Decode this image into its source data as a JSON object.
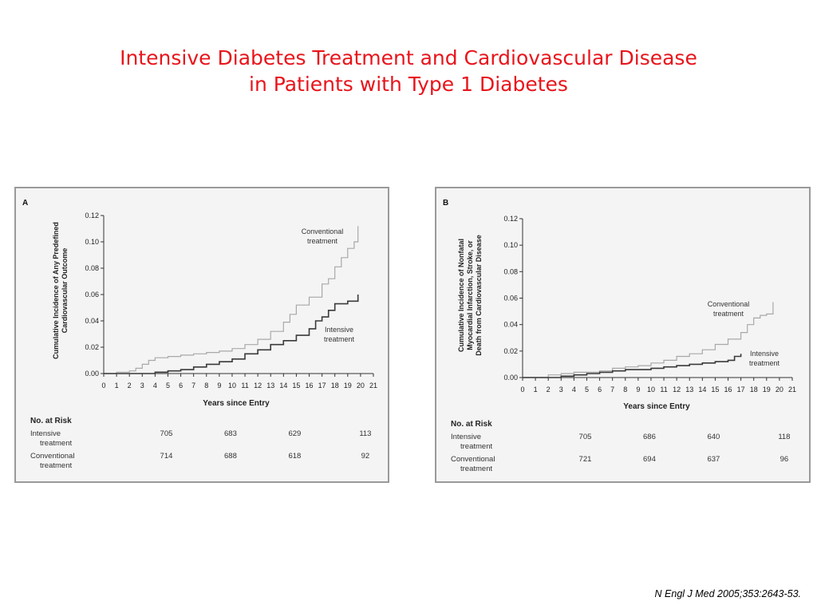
{
  "slide": {
    "title_line1": "Intensive Diabetes Treatment and Cardiovascular Disease",
    "title_line2": "in Patients with Type 1 Diabetes",
    "citation": "N Engl J Med 2005;353:2643-53."
  },
  "chart_data": [
    {
      "type": "line",
      "panel": "A",
      "ylabel_line1": "Cumulative Incidence of Any Predefined",
      "ylabel_line2": "Cardiovascular Outcome",
      "xlabel": "Years since Entry",
      "xlim": [
        0,
        21
      ],
      "ylim": [
        0,
        0.12
      ],
      "xticks": [
        0,
        1,
        2,
        3,
        4,
        5,
        6,
        7,
        8,
        9,
        10,
        11,
        12,
        13,
        14,
        15,
        16,
        17,
        18,
        19,
        20,
        21
      ],
      "yticks": [
        "0.00",
        "0.02",
        "0.04",
        "0.06",
        "0.08",
        "0.10",
        "0.12"
      ],
      "series": [
        {
          "name_line1": "Conventional",
          "name_line2": "treatment",
          "color": "#a8a8a8",
          "points": [
            [
              0,
              0
            ],
            [
              1,
              0.001
            ],
            [
              2,
              0.002
            ],
            [
              2.5,
              0.004
            ],
            [
              3,
              0.007
            ],
            [
              3.5,
              0.01
            ],
            [
              4,
              0.012
            ],
            [
              5,
              0.013
            ],
            [
              6,
              0.014
            ],
            [
              7,
              0.015
            ],
            [
              8,
              0.016
            ],
            [
              9,
              0.017
            ],
            [
              10,
              0.019
            ],
            [
              11,
              0.022
            ],
            [
              12,
              0.026
            ],
            [
              13,
              0.032
            ],
            [
              14,
              0.039
            ],
            [
              14.5,
              0.045
            ],
            [
              15,
              0.052
            ],
            [
              16,
              0.058
            ],
            [
              17,
              0.068
            ],
            [
              17.5,
              0.072
            ],
            [
              18,
              0.081
            ],
            [
              18.5,
              0.088
            ],
            [
              19,
              0.095
            ],
            [
              19.5,
              0.1
            ],
            [
              19.8,
              0.112
            ]
          ]
        },
        {
          "name_line1": "Intensive",
          "name_line2": "treatment",
          "color": "#3a3a3a",
          "points": [
            [
              0,
              0
            ],
            [
              3,
              0
            ],
            [
              4,
              0.001
            ],
            [
              5,
              0.002
            ],
            [
              6,
              0.003
            ],
            [
              7,
              0.005
            ],
            [
              8,
              0.007
            ],
            [
              9,
              0.009
            ],
            [
              10,
              0.011
            ],
            [
              11,
              0.015
            ],
            [
              12,
              0.018
            ],
            [
              13,
              0.022
            ],
            [
              14,
              0.025
            ],
            [
              15,
              0.029
            ],
            [
              16,
              0.034
            ],
            [
              16.5,
              0.04
            ],
            [
              17,
              0.043
            ],
            [
              17.5,
              0.048
            ],
            [
              18,
              0.053
            ],
            [
              19,
              0.055
            ],
            [
              19.8,
              0.06
            ]
          ]
        }
      ],
      "at_risk": {
        "header": "No. at Risk",
        "rows": [
          {
            "label_line1": "Intensive",
            "label_line2": "treatment",
            "values": [
              "705",
              "683",
              "629",
              "113"
            ]
          },
          {
            "label_line1": "Conventional",
            "label_line2": "treatment",
            "values": [
              "714",
              "688",
              "618",
              "92"
            ]
          }
        ],
        "years": [
          5,
          10,
          15,
          20
        ]
      }
    },
    {
      "type": "line",
      "panel": "B",
      "ylabel_line1": "Cumulative Incidence of Nonfatal",
      "ylabel_line2": "Myocardial Infarction, Stroke, or",
      "ylabel_line3": "Death from Cardiovascular Disease",
      "xlabel": "Years since Entry",
      "xlim": [
        0,
        21
      ],
      "ylim": [
        0,
        0.12
      ],
      "xticks": [
        0,
        1,
        2,
        3,
        4,
        5,
        6,
        7,
        8,
        9,
        10,
        11,
        12,
        13,
        14,
        15,
        16,
        17,
        18,
        19,
        20,
        21
      ],
      "yticks": [
        "0.00",
        "0.02",
        "0.04",
        "0.06",
        "0.08",
        "0.10",
        "0.12"
      ],
      "series": [
        {
          "name_line1": "Conventional",
          "name_line2": "treatment",
          "color": "#a8a8a8",
          "points": [
            [
              0,
              0
            ],
            [
              2,
              0.002
            ],
            [
              3,
              0.003
            ],
            [
              4,
              0.004
            ],
            [
              5,
              0.004
            ],
            [
              6,
              0.005
            ],
            [
              7,
              0.007
            ],
            [
              8,
              0.008
            ],
            [
              9,
              0.009
            ],
            [
              10,
              0.011
            ],
            [
              11,
              0.013
            ],
            [
              12,
              0.016
            ],
            [
              13,
              0.018
            ],
            [
              14,
              0.021
            ],
            [
              15,
              0.025
            ],
            [
              16,
              0.029
            ],
            [
              17,
              0.034
            ],
            [
              17.5,
              0.04
            ],
            [
              18,
              0.045
            ],
            [
              18.5,
              0.047
            ],
            [
              19,
              0.048
            ],
            [
              19.5,
              0.057
            ]
          ]
        },
        {
          "name_line1": "Intensive",
          "name_line2": "treatment",
          "color": "#3a3a3a",
          "points": [
            [
              0,
              0
            ],
            [
              3,
              0.001
            ],
            [
              4,
              0.002
            ],
            [
              5,
              0.003
            ],
            [
              6,
              0.004
            ],
            [
              7,
              0.005
            ],
            [
              8,
              0.006
            ],
            [
              9,
              0.006
            ],
            [
              10,
              0.007
            ],
            [
              11,
              0.008
            ],
            [
              12,
              0.009
            ],
            [
              13,
              0.01
            ],
            [
              14,
              0.011
            ],
            [
              15,
              0.012
            ],
            [
              16,
              0.013
            ],
            [
              16.5,
              0.016
            ],
            [
              17,
              0.018
            ]
          ]
        }
      ],
      "at_risk": {
        "header": "No. at Risk",
        "rows": [
          {
            "label_line1": "Intensive",
            "label_line2": "treatment",
            "values": [
              "705",
              "686",
              "640",
              "118"
            ]
          },
          {
            "label_line1": "Conventional",
            "label_line2": "treatment",
            "values": [
              "721",
              "694",
              "637",
              "96"
            ]
          }
        ],
        "years": [
          5,
          10,
          15,
          20
        ]
      }
    }
  ]
}
